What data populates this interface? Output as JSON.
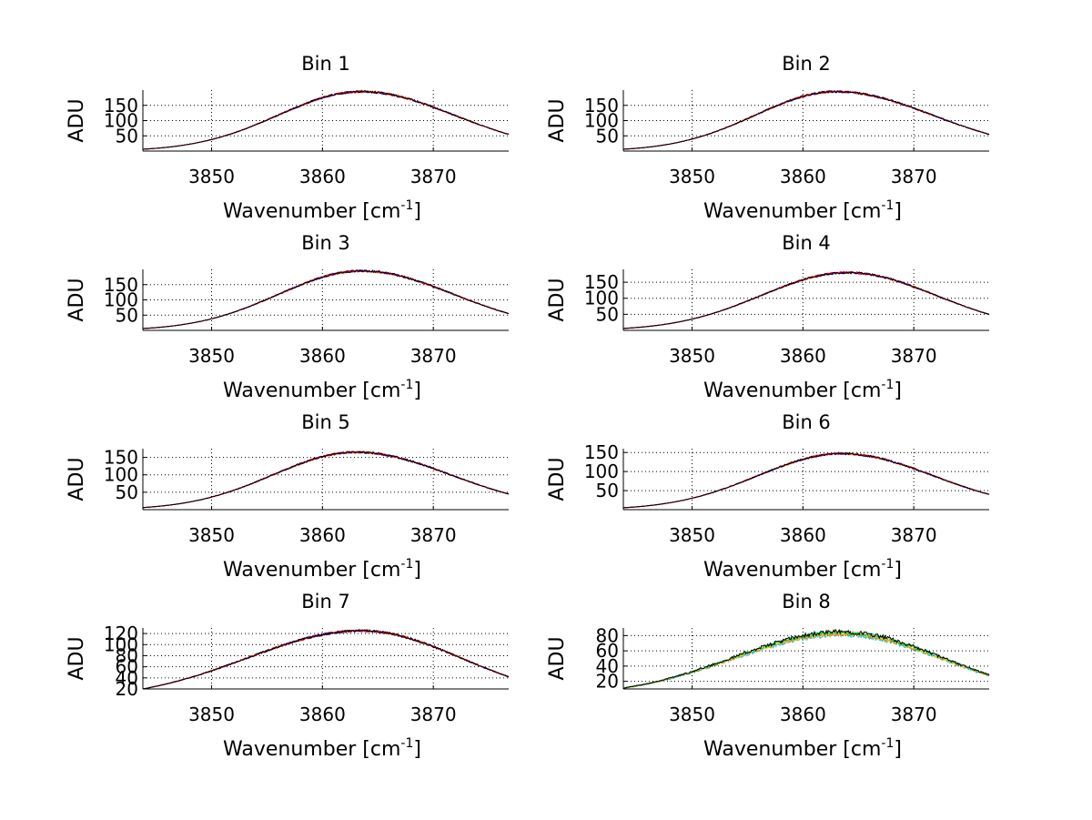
{
  "chart_data": [
    {
      "type": "line",
      "title": "Bin 1",
      "xlabel_main": "Wavenumber [cm",
      "xlabel_sup": "-1",
      "xlabel_close": "]",
      "ylabel": "ADU",
      "xlim": [
        3843.8,
        3876.8
      ],
      "ylim": [
        0,
        200
      ],
      "xticks": [
        "3850",
        "3860",
        "3870"
      ],
      "yticks": [
        "50",
        "100",
        "150"
      ],
      "ytick_values": [
        50,
        100,
        150
      ],
      "peak_wavenumber": 3863.5,
      "peak_adu": 195,
      "edge_left_adu": 6,
      "edge_right_adu": 55,
      "series_colors": [
        "#ff7f00",
        "#0000ff",
        "#ff0000",
        "#000000"
      ]
    },
    {
      "type": "line",
      "title": "Bin 2",
      "xlabel_main": "Wavenumber [cm",
      "xlabel_sup": "-1",
      "xlabel_close": "]",
      "ylabel": "ADU",
      "xlim": [
        3843.8,
        3876.8
      ],
      "ylim": [
        0,
        200
      ],
      "xticks": [
        "3850",
        "3860",
        "3870"
      ],
      "yticks": [
        "50",
        "100",
        "150"
      ],
      "ytick_values": [
        50,
        100,
        150
      ],
      "peak_wavenumber": 3863.0,
      "peak_adu": 195,
      "edge_left_adu": 6,
      "edge_right_adu": 55,
      "series_colors": [
        "#ff7f00",
        "#0000ff",
        "#ff0000",
        "#000000"
      ]
    },
    {
      "type": "line",
      "title": "Bin 3",
      "xlabel_main": "Wavenumber [cm",
      "xlabel_sup": "-1",
      "xlabel_close": "]",
      "ylabel": "ADU",
      "xlim": [
        3843.8,
        3876.8
      ],
      "ylim": [
        0,
        200
      ],
      "xticks": [
        "3850",
        "3860",
        "3870"
      ],
      "yticks": [
        "50",
        "100",
        "150"
      ],
      "ytick_values": [
        50,
        100,
        150
      ],
      "peak_wavenumber": 3863.5,
      "peak_adu": 195,
      "edge_left_adu": 6,
      "edge_right_adu": 55,
      "series_colors": [
        "#ff7f00",
        "#0000ff",
        "#ff0000",
        "#000000"
      ]
    },
    {
      "type": "line",
      "title": "Bin 4",
      "xlabel_main": "Wavenumber [cm",
      "xlabel_sup": "-1",
      "xlabel_close": "]",
      "ylabel": "ADU",
      "xlim": [
        3843.8,
        3876.8
      ],
      "ylim": [
        0,
        190
      ],
      "xticks": [
        "3850",
        "3860",
        "3870"
      ],
      "yticks": [
        "50",
        "100",
        "150"
      ],
      "ytick_values": [
        50,
        100,
        150
      ],
      "peak_wavenumber": 3864.0,
      "peak_adu": 180,
      "edge_left_adu": 6,
      "edge_right_adu": 50,
      "series_colors": [
        "#ff7f00",
        "#0000ff",
        "#ff0000",
        "#000000"
      ]
    },
    {
      "type": "line",
      "title": "Bin 5",
      "xlabel_main": "Wavenumber [cm",
      "xlabel_sup": "-1",
      "xlabel_close": "]",
      "ylabel": "ADU",
      "xlim": [
        3843.8,
        3876.8
      ],
      "ylim": [
        0,
        175
      ],
      "xticks": [
        "3850",
        "3860",
        "3870"
      ],
      "yticks": [
        "50",
        "100",
        "150"
      ],
      "ytick_values": [
        50,
        100,
        150
      ],
      "peak_wavenumber": 3863.0,
      "peak_adu": 165,
      "edge_left_adu": 6,
      "edge_right_adu": 45,
      "series_colors": [
        "#ff7f00",
        "#0000ff",
        "#ff0000",
        "#000000"
      ]
    },
    {
      "type": "line",
      "title": "Bin 6",
      "xlabel_main": "Wavenumber [cm",
      "xlabel_sup": "-1",
      "xlabel_close": "]",
      "ylabel": "ADU",
      "xlim": [
        3843.8,
        3876.8
      ],
      "ylim": [
        0,
        160
      ],
      "xticks": [
        "3850",
        "3860",
        "3870"
      ],
      "yticks": [
        "50",
        "100",
        "150"
      ],
      "ytick_values": [
        50,
        100,
        150
      ],
      "peak_wavenumber": 3863.5,
      "peak_adu": 147,
      "edge_left_adu": 5,
      "edge_right_adu": 40,
      "series_colors": [
        "#ff7f00",
        "#0000ff",
        "#ff0000",
        "#000000"
      ]
    },
    {
      "type": "line",
      "title": "Bin 7",
      "xlabel_main": "Wavenumber [cm",
      "xlabel_sup": "-1",
      "xlabel_close": "]",
      "ylabel": "ADU",
      "xlim": [
        3843.8,
        3876.8
      ],
      "ylim": [
        20,
        130
      ],
      "xticks": [
        "3850",
        "3860",
        "3870"
      ],
      "yticks": [
        "20",
        "40",
        "60",
        "80",
        "100",
        "120"
      ],
      "ytick_values": [
        20,
        40,
        60,
        80,
        100,
        120
      ],
      "peak_wavenumber": 3863.5,
      "peak_adu": 125,
      "edge_left_adu": 20,
      "edge_right_adu": 42,
      "series_colors": [
        "#ff7f00",
        "#0000ff",
        "#ff0000",
        "#000000"
      ]
    },
    {
      "type": "line",
      "title": "Bin 8",
      "xlabel_main": "Wavenumber [cm",
      "xlabel_sup": "-1",
      "xlabel_close": "]",
      "ylabel": "ADU",
      "xlim": [
        3843.8,
        3876.8
      ],
      "ylim": [
        10,
        90
      ],
      "xticks": [
        "3850",
        "3860",
        "3870"
      ],
      "yticks": [
        "20",
        "40",
        "60",
        "80"
      ],
      "ytick_values": [
        20,
        40,
        60,
        80
      ],
      "peak_wavenumber": 3863.5,
      "peak_adu": 83,
      "edge_left_adu": 11,
      "edge_right_adu": 28,
      "series_colors": [
        "#00bfff",
        "#ff7f00",
        "#ffcc00",
        "#00cc66",
        "#000000"
      ]
    }
  ]
}
